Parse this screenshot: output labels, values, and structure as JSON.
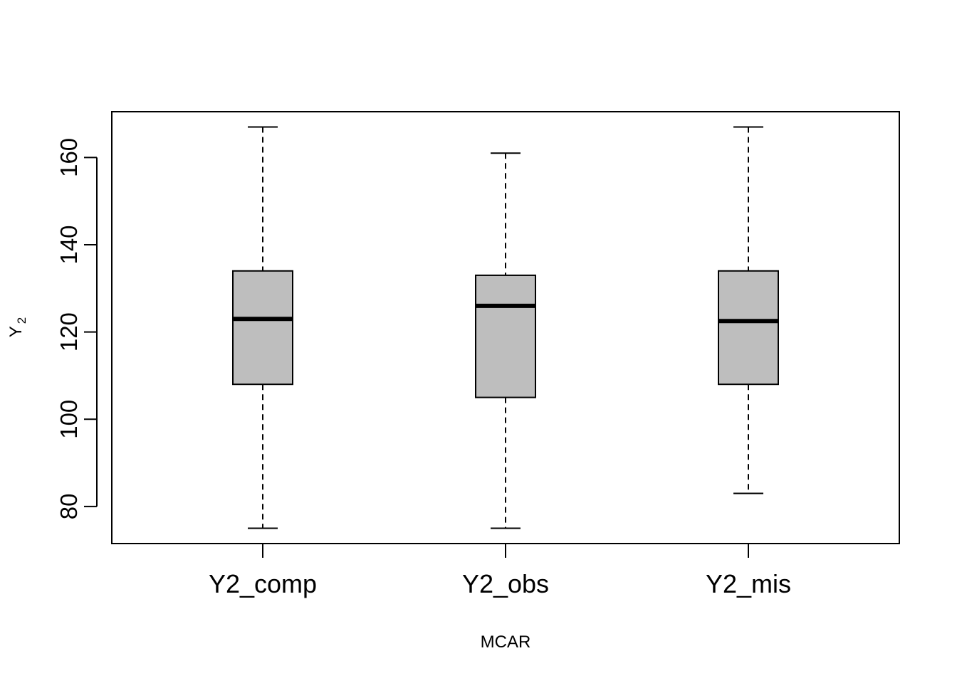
{
  "chart_data": {
    "type": "boxplot",
    "xlabel": "MCAR",
    "ylabel": "Y",
    "ylabel_subscript": "2",
    "ylim": [
      71.5,
      170.5
    ],
    "yticks": [
      80,
      100,
      120,
      140,
      160
    ],
    "yticks_labels": [
      "80",
      "100",
      "120",
      "140",
      "160"
    ],
    "categories": [
      "Y2_comp",
      "Y2_obs",
      "Y2_mis"
    ],
    "boxes": [
      {
        "name": "Y2_comp",
        "min": 75,
        "q1": 108,
        "median": 123,
        "q3": 134,
        "max": 167
      },
      {
        "name": "Y2_obs",
        "min": 75,
        "q1": 105,
        "median": 126,
        "q3": 133,
        "max": 161
      },
      {
        "name": "Y2_mis",
        "min": 83,
        "q1": 108,
        "median": 122.5,
        "q3": 134,
        "max": 167
      }
    ],
    "box_fill": "#bebebe",
    "stroke": "#000000",
    "grid": false
  }
}
